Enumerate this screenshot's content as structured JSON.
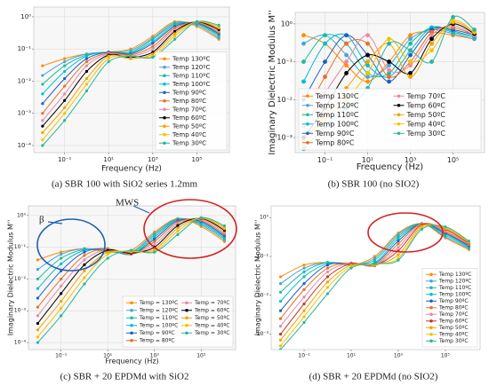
{
  "chart_data": [
    {
      "type": "line",
      "caption": "(a) SBR 100 with SiO2 series 1.2mm",
      "x_label": "Frequency (Hz)",
      "log_x": true,
      "log_y": true,
      "grid": true,
      "legend": "lower right",
      "x": [
        0.01,
        0.1,
        1,
        10,
        100,
        1000,
        10000,
        100000,
        1000000
      ],
      "xlim": [
        0.004,
        3000000
      ],
      "ylim": [
        6e-05,
        2
      ],
      "xticks": [
        {
          "value": 0.1,
          "label": "10⁻¹"
        },
        {
          "value": 10,
          "label": "10¹"
        },
        {
          "value": 1000,
          "label": "10³"
        },
        {
          "value": 100000,
          "label": "10⁵"
        }
      ],
      "yticks": [
        {
          "value": 0.0001,
          "label": "10⁻⁴"
        },
        {
          "value": 0.001,
          "label": "10⁻³"
        },
        {
          "value": 0.01,
          "label": "10⁻²"
        },
        {
          "value": 0.1,
          "label": "10⁻¹"
        },
        {
          "value": 1,
          "label": "10⁰"
        }
      ],
      "series": [
        {
          "name": "Temp 130ºC",
          "color": "#ff8c00",
          "values": [
            0.03,
            0.05,
            0.07,
            0.08,
            0.1,
            0.25,
            0.7,
            0.5,
            0.2
          ]
        },
        {
          "name": "Temp 120ºC",
          "color": "#4aa3df",
          "values": [
            0.015,
            0.04,
            0.07,
            0.08,
            0.09,
            0.22,
            0.65,
            0.55,
            0.22
          ]
        },
        {
          "name": "Temp 110ºC",
          "color": "#1abc9c",
          "values": [
            0.008,
            0.03,
            0.065,
            0.08,
            0.08,
            0.2,
            0.6,
            0.6,
            0.25
          ]
        },
        {
          "name": "Temp 100ºC",
          "color": "#00bcd4",
          "values": [
            0.004,
            0.02,
            0.06,
            0.08,
            0.075,
            0.17,
            0.55,
            0.62,
            0.28
          ]
        },
        {
          "name": "Temp 90ºC",
          "color": "#1f5fbf",
          "values": [
            0.002,
            0.012,
            0.05,
            0.08,
            0.07,
            0.15,
            0.5,
            0.65,
            0.3
          ]
        },
        {
          "name": "Temp 80ºC",
          "color": "#e8702a",
          "values": [
            0.001,
            0.007,
            0.04,
            0.075,
            0.065,
            0.12,
            0.45,
            0.66,
            0.33
          ]
        },
        {
          "name": "Temp 70ºC",
          "color": "#e889a5",
          "values": [
            0.0006,
            0.004,
            0.03,
            0.07,
            0.06,
            0.1,
            0.4,
            0.68,
            0.36
          ]
        },
        {
          "name": "Temp 60ºC",
          "color": "#000000",
          "values": [
            0.0004,
            0.0025,
            0.02,
            0.065,
            0.055,
            0.08,
            0.35,
            0.7,
            0.4
          ]
        },
        {
          "name": "Temp 50ºC",
          "color": "#f5a000",
          "values": [
            0.00025,
            0.0015,
            0.012,
            0.06,
            0.05,
            0.07,
            0.3,
            0.7,
            0.45
          ]
        },
        {
          "name": "Temp 40ºC",
          "color": "#f2c200",
          "values": [
            0.00015,
            0.001,
            0.008,
            0.05,
            0.06,
            0.06,
            0.25,
            0.7,
            0.5
          ]
        },
        {
          "name": "Temp 30ºC",
          "color": "#2ab5a0",
          "values": [
            0.0001,
            0.0006,
            0.005,
            0.04,
            0.06,
            0.055,
            0.2,
            0.7,
            0.55
          ]
        }
      ]
    },
    {
      "type": "line",
      "caption": "(b) SBR 100 (no SIO2)",
      "x_label": "Frequency (Hz)",
      "y_label": "Imaginary Dielectric Modulus M''",
      "log_x": true,
      "log_y": true,
      "grid": true,
      "legend": "lower center",
      "x": [
        0.01,
        0.1,
        1,
        10,
        100,
        1000,
        10000,
        100000,
        1000000
      ],
      "xlim": [
        0.004,
        3000000
      ],
      "ylim": [
        0.0004,
        2
      ],
      "xticks": [
        {
          "value": 0.1,
          "label": "10⁻¹"
        },
        {
          "value": 10,
          "label": "10¹"
        },
        {
          "value": 1000,
          "label": "10³"
        },
        {
          "value": 100000,
          "label": "10⁵"
        }
      ],
      "yticks": [
        {
          "value": 0.001,
          "label": "10⁻³"
        },
        {
          "value": 0.01,
          "label": "10⁻²"
        },
        {
          "value": 0.1,
          "label": "10⁻¹"
        },
        {
          "value": 1,
          "label": "10⁰"
        }
      ],
      "series": [
        {
          "name": "Temp 130ºC",
          "color": "#ff8c00",
          "values": [
            0.5,
            0.3,
            0.08,
            0.03,
            0.1,
            0.5,
            0.6,
            0.5,
            0.4
          ]
        },
        {
          "name": "Temp 120ºC",
          "color": "#4aa3df",
          "values": [
            0.3,
            0.5,
            0.15,
            0.04,
            0.08,
            0.4,
            0.7,
            0.55,
            0.4
          ]
        },
        {
          "name": "Temp 110ºC",
          "color": "#1abc9c",
          "values": [
            0.1,
            0.5,
            0.3,
            0.05,
            0.05,
            0.3,
            0.8,
            0.6,
            0.45
          ]
        },
        {
          "name": "Temp 100ºC",
          "color": "#00bcd4",
          "values": [
            0.03,
            0.3,
            0.5,
            0.08,
            0.04,
            0.2,
            0.8,
            0.65,
            0.45
          ]
        },
        {
          "name": "Temp 90ºC",
          "color": "#1f5fbf",
          "values": [
            0.01,
            0.1,
            0.5,
            0.15,
            0.03,
            0.15,
            0.7,
            0.7,
            0.5
          ]
        },
        {
          "name": "Temp 80ºC",
          "color": "#e8702a",
          "values": [
            0.004,
            0.04,
            0.3,
            0.3,
            0.04,
            0.1,
            0.6,
            0.8,
            0.5
          ]
        },
        {
          "name": "Temp 70ºC",
          "color": "#e889a5",
          "values": [
            0.002,
            0.015,
            0.1,
            0.5,
            0.06,
            0.08,
            0.5,
            0.9,
            0.5
          ]
        },
        {
          "name": "Temp 60ºC",
          "color": "#000000",
          "values": [
            0.001,
            0.006,
            0.05,
            0.15,
            0.1,
            0.05,
            0.4,
            1.0,
            0.55
          ]
        },
        {
          "name": "Temp 50ºC",
          "color": "#f5a000",
          "values": [
            0.0008,
            0.004,
            0.02,
            0.1,
            0.3,
            0.04,
            0.3,
            1.1,
            0.6
          ]
        },
        {
          "name": "Temp 40ºC",
          "color": "#f2c200",
          "values": [
            0.0006,
            0.003,
            0.01,
            0.05,
            0.4,
            0.1,
            0.2,
            1.2,
            0.6
          ]
        },
        {
          "name": "Temp 30ºC",
          "color": "#2ab5a0",
          "values": [
            0.0005,
            0.002,
            0.006,
            0.02,
            0.3,
            0.2,
            0.1,
            1.5,
            0.7
          ]
        }
      ]
    },
    {
      "type": "line",
      "caption": "(c) SBR + 20 EPDMd with SiO2",
      "x_label": "Frequency (Hz)",
      "y_label": "Imaginary Dielectric Modulus M''",
      "log_x": true,
      "log_y": true,
      "grid": true,
      "legend": "lower right",
      "annotations": [
        "MWS",
        "β"
      ],
      "x": [
        0.01,
        0.1,
        1,
        10,
        100,
        1000,
        10000,
        100000,
        1000000
      ],
      "xlim": [
        0.004,
        3000000
      ],
      "ylim": [
        6e-05,
        2
      ],
      "xticks": [
        {
          "value": 0.1,
          "label": "10⁻¹"
        },
        {
          "value": 10,
          "label": "10¹"
        },
        {
          "value": 1000,
          "label": "10³"
        },
        {
          "value": 100000,
          "label": "10⁵"
        }
      ],
      "yticks": [
        {
          "value": 0.0001,
          "label": "10⁻⁴"
        },
        {
          "value": 0.001,
          "label": "10⁻³"
        },
        {
          "value": 0.01,
          "label": "10⁻²"
        },
        {
          "value": 0.1,
          "label": "10⁻¹"
        },
        {
          "value": 1,
          "label": "10⁰"
        }
      ],
      "series": [
        {
          "name": "Temp = 130ºC",
          "color": "#ff8c00",
          "values": [
            0.04,
            0.07,
            0.09,
            0.07,
            0.08,
            0.3,
            0.8,
            0.45,
            0.15
          ]
        },
        {
          "name": "Temp = 120ºC",
          "color": "#4aa3df",
          "values": [
            0.02,
            0.06,
            0.09,
            0.075,
            0.07,
            0.27,
            0.78,
            0.5,
            0.17
          ]
        },
        {
          "name": "Temp = 110ºC",
          "color": "#1abc9c",
          "values": [
            0.01,
            0.045,
            0.085,
            0.08,
            0.065,
            0.24,
            0.75,
            0.55,
            0.19
          ]
        },
        {
          "name": "Temp = 100ºC",
          "color": "#00bcd4",
          "values": [
            0.005,
            0.03,
            0.08,
            0.085,
            0.06,
            0.21,
            0.72,
            0.6,
            0.21
          ]
        },
        {
          "name": "Temp = 90ºC",
          "color": "#1f5fbf",
          "values": [
            0.0025,
            0.018,
            0.07,
            0.09,
            0.06,
            0.18,
            0.68,
            0.65,
            0.23
          ]
        },
        {
          "name": "Temp = 80ºC",
          "color": "#e8702a",
          "values": [
            0.0013,
            0.01,
            0.055,
            0.09,
            0.06,
            0.15,
            0.62,
            0.7,
            0.26
          ]
        },
        {
          "name": "Temp = 70ºC",
          "color": "#e889a5",
          "values": [
            0.0007,
            0.006,
            0.04,
            0.085,
            0.062,
            0.12,
            0.55,
            0.75,
            0.3
          ]
        },
        {
          "name": "Temp = 60ºC",
          "color": "#000000",
          "values": [
            0.0004,
            0.0035,
            0.028,
            0.08,
            0.065,
            0.1,
            0.48,
            0.8,
            0.34
          ]
        },
        {
          "name": "Temp = 50ºC",
          "color": "#f5a000",
          "values": [
            0.00025,
            0.002,
            0.018,
            0.07,
            0.07,
            0.085,
            0.4,
            0.82,
            0.38
          ]
        },
        {
          "name": "Temp = 40ºC",
          "color": "#f2c200",
          "values": [
            0.00015,
            0.0012,
            0.011,
            0.06,
            0.075,
            0.075,
            0.32,
            0.85,
            0.42
          ]
        },
        {
          "name": "Temp = 30ºC",
          "color": "#2ab5a0",
          "values": [
            0.0001,
            0.0007,
            0.007,
            0.045,
            0.08,
            0.07,
            0.25,
            0.85,
            0.47
          ]
        }
      ]
    },
    {
      "type": "line",
      "caption": "(d) SBR + 20 EPDMd (no SIO2)",
      "y_label": "Imaginary Dielectric Modulus M''",
      "log_x": true,
      "log_y": true,
      "grid": false,
      "legend": "lower right",
      "x": [
        0.01,
        0.1,
        1,
        10,
        100,
        1000,
        10000,
        100000,
        1000000
      ],
      "xlim": [
        0.004,
        3000000
      ],
      "ylim": [
        0.0004,
        2
      ],
      "xticks": [
        {
          "value": 0.1,
          "label": "10⁻¹"
        },
        {
          "value": 10,
          "label": "10¹"
        },
        {
          "value": 1000,
          "label": "10³"
        },
        {
          "value": 100000,
          "label": "10⁵"
        }
      ],
      "yticks": [
        {
          "value": 0.001,
          "label": "10⁻³"
        },
        {
          "value": 0.01,
          "label": "10⁻²"
        },
        {
          "value": 0.1,
          "label": "10⁻¹"
        },
        {
          "value": 1,
          "label": "10⁰"
        }
      ],
      "series": [
        {
          "name": "Temp 130ºC",
          "color": "#ff8c00",
          "values": [
            0.03,
            0.06,
            0.07,
            0.06,
            0.1,
            0.4,
            0.7,
            0.3,
            0.15
          ]
        },
        {
          "name": "Temp 120ºC",
          "color": "#4aa3df",
          "values": [
            0.02,
            0.05,
            0.07,
            0.06,
            0.09,
            0.37,
            0.7,
            0.32,
            0.16
          ]
        },
        {
          "name": "Temp 110ºC",
          "color": "#1abc9c",
          "values": [
            0.012,
            0.04,
            0.07,
            0.062,
            0.08,
            0.33,
            0.7,
            0.35,
            0.17
          ]
        },
        {
          "name": "Temp 100ºC",
          "color": "#00bcd4",
          "values": [
            0.007,
            0.03,
            0.065,
            0.065,
            0.07,
            0.29,
            0.7,
            0.38,
            0.18
          ]
        },
        {
          "name": "Temp 90ºC",
          "color": "#1f5fbf",
          "values": [
            0.004,
            0.02,
            0.06,
            0.067,
            0.065,
            0.25,
            0.7,
            0.4,
            0.19
          ]
        },
        {
          "name": "Temp 80ºC",
          "color": "#e8702a",
          "values": [
            0.0025,
            0.014,
            0.05,
            0.068,
            0.06,
            0.21,
            0.7,
            0.43,
            0.2
          ]
        },
        {
          "name": "Temp 70ºC",
          "color": "#e889a5",
          "values": [
            0.0016,
            0.009,
            0.04,
            0.068,
            0.058,
            0.17,
            0.68,
            0.46,
            0.21
          ]
        },
        {
          "name": "Temp 60ºC",
          "color": "#c0392b",
          "values": [
            0.001,
            0.006,
            0.03,
            0.065,
            0.058,
            0.14,
            0.65,
            0.5,
            0.22
          ]
        },
        {
          "name": "Temp 50ºC",
          "color": "#f5a000",
          "values": [
            0.0007,
            0.004,
            0.022,
            0.06,
            0.06,
            0.11,
            0.6,
            0.52,
            0.23
          ]
        },
        {
          "name": "Temp 40ºC",
          "color": "#f2c200",
          "values": [
            0.0005,
            0.0028,
            0.016,
            0.055,
            0.062,
            0.09,
            0.55,
            0.55,
            0.24
          ]
        },
        {
          "name": "Temp 30ºC",
          "color": "#2ab5a0",
          "values": [
            0.0004,
            0.002,
            0.011,
            0.05,
            0.065,
            0.08,
            0.5,
            0.58,
            0.25
          ]
        }
      ]
    }
  ]
}
